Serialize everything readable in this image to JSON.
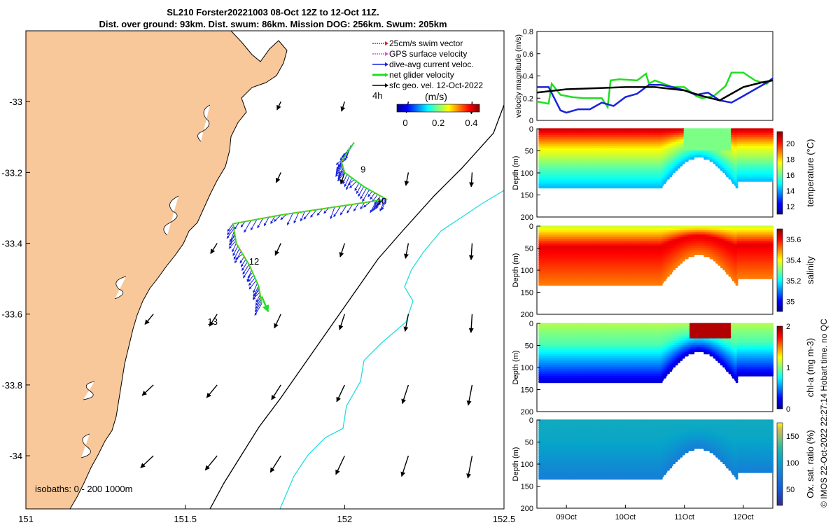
{
  "title": {
    "line1": "SL210 Forster20221003 08-Oct 12Z to 12-Oct 11Z.",
    "line2": "Dist. over ground: 93km. Dist. swum: 86km. Mission DOG: 256km. Swum: 205km"
  },
  "colors": {
    "land": "#f9c89a",
    "isobath_200": "#000000",
    "isobath_1000": "#22dddd",
    "swim": "#dd2222",
    "gps": "#ee44ee",
    "dive": "#1a22dd",
    "net": "#22dd22",
    "geo": "#000000"
  },
  "chart_data": [
    {
      "type": "map",
      "name": "glider-track-map",
      "x_ticks": [
        "151",
        "151.5",
        "152",
        "152.5"
      ],
      "y_ticks": [
        "-33",
        "-33.2",
        "-33.4",
        "-33.6",
        "-33.8",
        "-34"
      ],
      "xlim": [
        151.0,
        152.5
      ],
      "ylim": [
        -34.15,
        -32.8
      ],
      "legend": [
        {
          "key": "swim",
          "label": "25cm/s swim vector"
        },
        {
          "key": "gps",
          "label": "GPS surface velocity"
        },
        {
          "key": "dive",
          "label": "dive-avg current veloc."
        },
        {
          "key": "net",
          "label": "net glider velocity"
        },
        {
          "key": "geo",
          "label": "sfc geo. vel. 12-Oct-2022"
        }
      ],
      "legend_note": "4h",
      "colorbar": {
        "label": "(m/s)",
        "ticks": [
          "0",
          "0.2",
          "0.4"
        ],
        "range": [
          0,
          0.5
        ]
      },
      "track": [
        [
          152.03,
          -33.115
        ],
        [
          152.01,
          -33.14
        ],
        [
          151.99,
          -33.17
        ],
        [
          152.0,
          -33.2
        ],
        [
          152.06,
          -33.24
        ],
        [
          152.13,
          -33.275
        ],
        [
          152.1,
          -33.28
        ],
        [
          151.95,
          -33.3
        ],
        [
          151.8,
          -33.32
        ],
        [
          151.65,
          -33.345
        ],
        [
          151.66,
          -33.4
        ],
        [
          151.7,
          -33.46
        ],
        [
          151.73,
          -33.52
        ],
        [
          151.74,
          -33.57
        ]
      ],
      "track_end": [
        151.76,
        -33.585
      ],
      "day_labels": [
        {
          "text": "9",
          "lon": 152.05,
          "lat": -33.2
        },
        {
          "text": "10",
          "lon": 152.1,
          "lat": -33.29
        },
        {
          "text": "12",
          "lon": 151.7,
          "lat": -33.46
        },
        {
          "text": "13",
          "lon": 151.57,
          "lat": -33.63
        }
      ],
      "isobath_label": "isobaths: 0 - 200  1000m"
    },
    {
      "type": "line",
      "name": "velocity-magnitude-panel",
      "ylabel": "velocity magnitude (m/s)",
      "ylim": [
        0,
        0.8
      ],
      "y_ticks": [
        "0",
        "0.2",
        "0.4",
        "0.6",
        "0.8"
      ],
      "x_time": [
        8.5,
        12.5
      ],
      "series": [
        {
          "name": "net glider velocity",
          "color_key": "net",
          "t": [
            8.5,
            8.7,
            8.75,
            8.9,
            9.1,
            9.3,
            9.6,
            9.7,
            9.75,
            9.9,
            10.2,
            10.35,
            10.4,
            10.5,
            10.8,
            11.0,
            11.2,
            11.3,
            11.5,
            11.7,
            11.8,
            12.0,
            12.2,
            12.4,
            12.5
          ],
          "v": [
            0.17,
            0.15,
            0.33,
            0.23,
            0.21,
            0.2,
            0.2,
            0.12,
            0.36,
            0.37,
            0.36,
            0.42,
            0.33,
            0.36,
            0.3,
            0.3,
            0.22,
            0.2,
            0.22,
            0.31,
            0.43,
            0.43,
            0.36,
            0.33,
            0.38
          ]
        },
        {
          "name": "dive-avg current",
          "color_key": "dive",
          "t": [
            8.5,
            8.7,
            8.9,
            9.0,
            9.2,
            9.4,
            9.6,
            9.8,
            10.0,
            10.2,
            10.4,
            10.6,
            10.8,
            11.0,
            11.2,
            11.4,
            11.6,
            11.8,
            12.0,
            12.2,
            12.4,
            12.5
          ],
          "v": [
            0.3,
            0.3,
            0.09,
            0.07,
            0.1,
            0.1,
            0.16,
            0.13,
            0.21,
            0.24,
            0.32,
            0.32,
            0.3,
            0.27,
            0.23,
            0.25,
            0.18,
            0.16,
            0.22,
            0.28,
            0.34,
            0.38
          ]
        },
        {
          "name": "sfc geo. vel.",
          "color_key": "geo",
          "t": [
            8.5,
            9.0,
            9.5,
            10.0,
            10.5,
            11.0,
            11.3,
            11.6,
            11.8,
            12.0,
            12.3,
            12.5
          ],
          "v": [
            0.25,
            0.28,
            0.29,
            0.3,
            0.3,
            0.27,
            0.22,
            0.18,
            0.24,
            0.3,
            0.34,
            0.36
          ]
        }
      ]
    },
    {
      "type": "scatter",
      "name": "temperature-section",
      "ylabel": "Depth (m)",
      "colorbar_label": "temperature (°C)",
      "colorbar_ticks": [
        "12",
        "14",
        "16",
        "18",
        "20"
      ],
      "crange": [
        11,
        21.5
      ],
      "depth_ticks": [
        "0",
        "50",
        "100",
        "150",
        "200"
      ],
      "surface": 20.8,
      "mid": 17.5,
      "deep": 14.2
    },
    {
      "type": "scatter",
      "name": "salinity-section",
      "ylabel": "Depth (m)",
      "colorbar_label": "salinity",
      "colorbar_ticks": [
        "35",
        "35.2",
        "35.4",
        "35.6"
      ],
      "crange": [
        34.9,
        35.7
      ],
      "depth_ticks": [
        "0",
        "50",
        "100",
        "150",
        "200"
      ],
      "surface": 35.35,
      "mid": 35.62,
      "deep": 35.5
    },
    {
      "type": "scatter",
      "name": "chlorophyll-section",
      "ylabel": "Depth (m)",
      "colorbar_label": "chl-a (mg m-3)",
      "colorbar_ticks": [
        "0",
        "1",
        "2"
      ],
      "crange": [
        0,
        2
      ],
      "depth_ticks": [
        "0",
        "50",
        "100",
        "150",
        "200"
      ],
      "surface": 1.1,
      "mid": 0.9,
      "deep": 0.15
    },
    {
      "type": "scatter",
      "name": "oxygen-section",
      "ylabel": "Depth (m)",
      "colorbar_label": "Ox. sat. ratio (%)",
      "colorbar_ticks": [
        "50",
        "100",
        "150"
      ],
      "crange": [
        20,
        175
      ],
      "depth_ticks": [
        "0",
        "50",
        "100",
        "150",
        "200"
      ],
      "surface": 112,
      "mid": 108,
      "deep": 80
    }
  ],
  "time_axis": {
    "labels": [
      "09Oct",
      "10Oct",
      "11Oct",
      "12Oct"
    ],
    "positions": [
      9,
      10,
      11,
      12
    ],
    "range": [
      8.5,
      12.5
    ]
  },
  "copyright": "© IMOS 22-Oct-2022 22:27:14 Hobart time. no QC"
}
